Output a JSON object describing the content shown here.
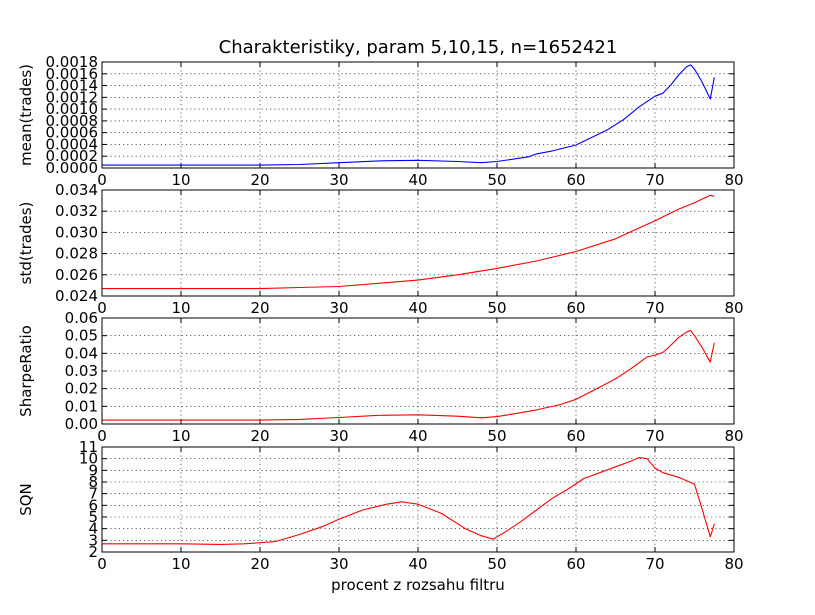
{
  "figure": {
    "title": "Charakteristiky, param 5,10,15, n=1652421",
    "xlabel": "procent z rozsahu filtru"
  },
  "chart_data": [
    {
      "type": "line",
      "ylabel": "mean(trades)",
      "xlim": [
        0,
        80
      ],
      "ylim": [
        0,
        0.0018
      ],
      "xticks": [
        "0",
        "10",
        "20",
        "30",
        "40",
        "50",
        "60",
        "70",
        "80"
      ],
      "yticks": [
        "0.0000",
        "0.0002",
        "0.0004",
        "0.0006",
        "0.0008",
        "0.0010",
        "0.0012",
        "0.0014",
        "0.0016",
        "0.0018"
      ],
      "grid": true,
      "series": [
        {
          "color": "#0000ff",
          "x": [
            0,
            10,
            20,
            25,
            30,
            35,
            40,
            45,
            48,
            50,
            52,
            54,
            55,
            57,
            60,
            62,
            64,
            66,
            68,
            70,
            71,
            72,
            73,
            74,
            74.5,
            75,
            76,
            77,
            77.5
          ],
          "y": [
            5e-05,
            5e-05,
            5e-05,
            6e-05,
            9e-05,
            0.00012,
            0.00013,
            0.00011,
            9e-05,
            0.00011,
            0.00015,
            0.00019,
            0.00024,
            0.00029,
            0.00039,
            0.00052,
            0.00065,
            0.00082,
            0.00104,
            0.00122,
            0.00127,
            0.00141,
            0.00158,
            0.00172,
            0.00175,
            0.00168,
            0.00145,
            0.00117,
            0.00154
          ]
        }
      ]
    },
    {
      "type": "line",
      "ylabel": "std(trades)",
      "xlim": [
        0,
        80
      ],
      "ylim": [
        0.024,
        0.034
      ],
      "xticks": [
        "0",
        "10",
        "20",
        "30",
        "40",
        "50",
        "60",
        "70",
        "80"
      ],
      "yticks": [
        "0.024",
        "0.026",
        "0.028",
        "0.030",
        "0.032",
        "0.034"
      ],
      "grid": true,
      "series": [
        {
          "color": "#ff0000",
          "x": [
            0,
            10,
            20,
            25,
            30,
            35,
            40,
            45,
            50,
            55,
            60,
            65,
            70,
            73,
            75,
            77,
            77.5
          ],
          "y": [
            0.0247,
            0.0247,
            0.0247,
            0.0248,
            0.0249,
            0.0252,
            0.0255,
            0.026,
            0.0266,
            0.0273,
            0.0282,
            0.0294,
            0.0311,
            0.0322,
            0.0328,
            0.0335,
            0.0334
          ]
        }
      ]
    },
    {
      "type": "line",
      "ylabel": "SharpeRatio",
      "xlim": [
        0,
        80
      ],
      "ylim": [
        0,
        0.06
      ],
      "xticks": [
        "0",
        "10",
        "20",
        "30",
        "40",
        "50",
        "60",
        "70",
        "80"
      ],
      "yticks": [
        "0.00",
        "0.01",
        "0.02",
        "0.03",
        "0.04",
        "0.05",
        "0.06"
      ],
      "grid": true,
      "series": [
        {
          "color": "#ff0000",
          "x": [
            0,
            10,
            20,
            25,
            30,
            35,
            40,
            45,
            48,
            50,
            52,
            55,
            58,
            60,
            62,
            65,
            67,
            69,
            70,
            71,
            72,
            73,
            74,
            74.5,
            75,
            76,
            77,
            77.5
          ],
          "y": [
            0.0022,
            0.0022,
            0.0022,
            0.0026,
            0.0037,
            0.0049,
            0.0052,
            0.0044,
            0.0035,
            0.0042,
            0.0056,
            0.008,
            0.011,
            0.014,
            0.0185,
            0.0255,
            0.0315,
            0.038,
            0.039,
            0.0405,
            0.0445,
            0.049,
            0.052,
            0.053,
            0.05,
            0.043,
            0.035,
            0.046
          ]
        }
      ]
    },
    {
      "type": "line",
      "ylabel": "SQN",
      "xlim": [
        0,
        80
      ],
      "ylim": [
        2,
        11
      ],
      "xticks": [
        "0",
        "10",
        "20",
        "30",
        "40",
        "50",
        "60",
        "70",
        "80"
      ],
      "yticks": [
        "2",
        "3",
        "4",
        "5",
        "6",
        "7",
        "8",
        "9",
        "10",
        "11"
      ],
      "grid": true,
      "series": [
        {
          "color": "#ff0000",
          "x": [
            0,
            10,
            15,
            18,
            20,
            22,
            25,
            28,
            30,
            33,
            36,
            38,
            40,
            43,
            46,
            48,
            49.5,
            51,
            53,
            55,
            57,
            59,
            61,
            63,
            65,
            67,
            68,
            69,
            70,
            71,
            73,
            75,
            76,
            77,
            77.5
          ],
          "y": [
            2.7,
            2.7,
            2.65,
            2.7,
            2.8,
            2.9,
            3.5,
            4.2,
            4.8,
            5.6,
            6.1,
            6.3,
            6.1,
            5.3,
            4.0,
            3.4,
            3.1,
            3.7,
            4.6,
            5.6,
            6.6,
            7.4,
            8.3,
            8.8,
            9.3,
            9.8,
            10.1,
            10.0,
            9.2,
            8.8,
            8.4,
            7.8,
            5.6,
            3.3,
            4.4
          ]
        }
      ]
    }
  ]
}
